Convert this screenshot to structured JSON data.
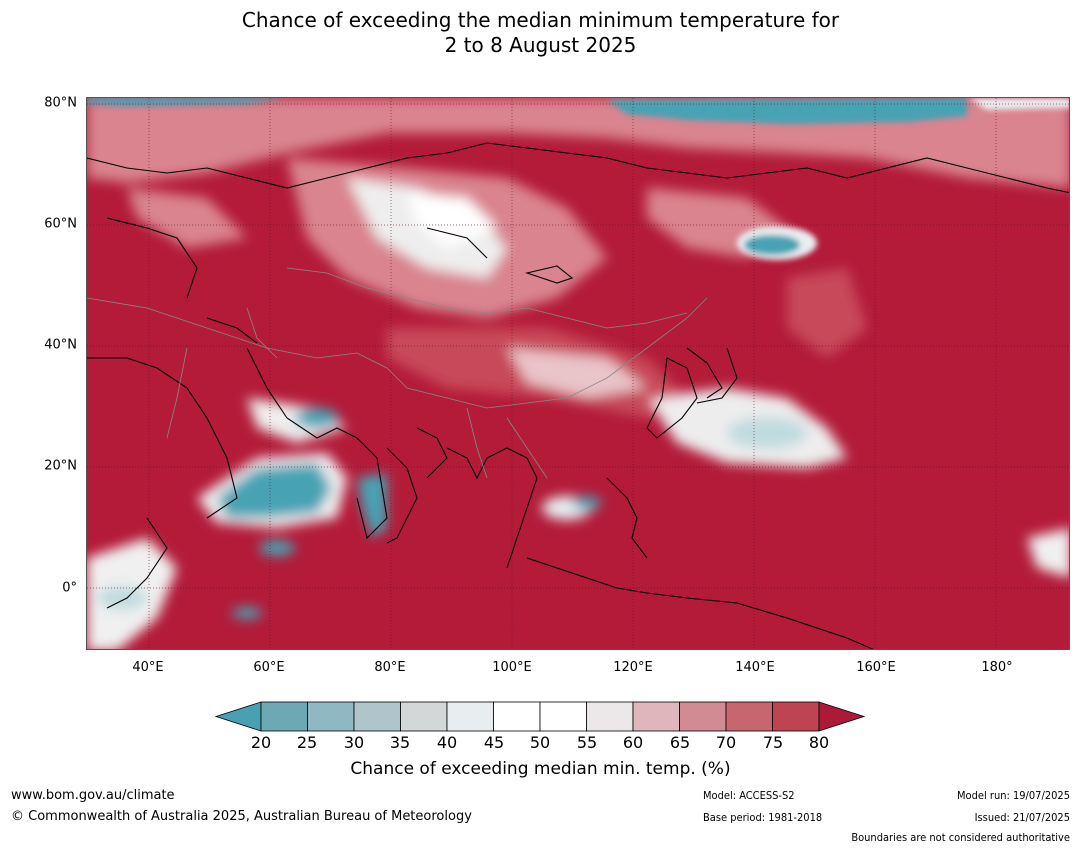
{
  "title": {
    "line1": "Chance of exceeding the median minimum temperature for",
    "line2": "2 to 8 August 2025"
  },
  "map": {
    "region": "Asia",
    "latitude_labels": [
      "80°N",
      "60°N",
      "40°N",
      "20°N",
      "0°"
    ],
    "longitude_labels": [
      "40°E",
      "60°E",
      "80°E",
      "100°E",
      "120°E",
      "140°E",
      "160°E",
      "180°"
    ],
    "colors": {
      "very_high": "#b31b39",
      "high": "#c74a5a",
      "mid_high": "#d9848f",
      "near_median": "#f4f4f4",
      "low": "#46a3b4",
      "border": "#000000",
      "country_boundary": "#888888"
    }
  },
  "colorbar": {
    "ticks": [
      "20",
      "25",
      "30",
      "35",
      "40",
      "45",
      "50",
      "55",
      "60",
      "65",
      "70",
      "75",
      "80"
    ],
    "colors": [
      "#4aa0b3",
      "#6da8b5",
      "#8fb8c4",
      "#adc5cb",
      "#d3d7d8",
      "#e8eef0",
      "#ffffff",
      "#ffffff",
      "#ece8e9",
      "#deb6bb",
      "#d28a93",
      "#c86670",
      "#bf4452",
      "#ac1a37"
    ],
    "label": "Chance of exceeding median min. temp. (%)"
  },
  "footer": {
    "url": "www.bom.gov.au/climate",
    "copyright": "© Commonwealth of Australia 2025, Australian Bureau of Meteorology",
    "model": "Model: ACCESS-S2",
    "base_period": "Base period: 1981-2018",
    "model_run": "Model run: 19/07/2025",
    "issued": "Issued: 21/07/2025",
    "disclaimer": "Boundaries are not considered authoritative"
  }
}
